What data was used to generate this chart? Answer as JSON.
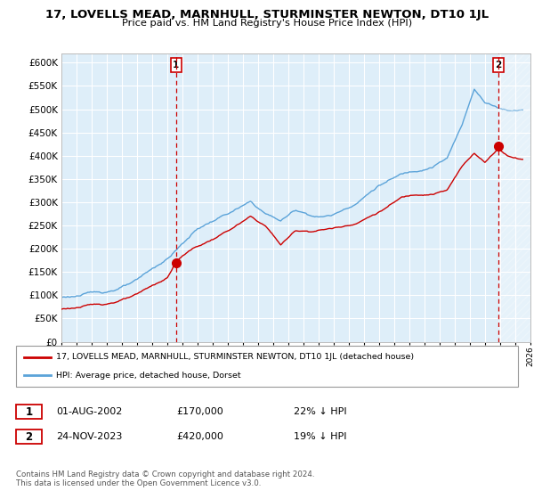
{
  "title": "17, LOVELLS MEAD, MARNHULL, STURMINSTER NEWTON, DT10 1JL",
  "subtitle": "Price paid vs. HM Land Registry's House Price Index (HPI)",
  "legend_line1": "17, LOVELLS MEAD, MARNHULL, STURMINSTER NEWTON, DT10 1JL (detached house)",
  "legend_line2": "HPI: Average price, detached house, Dorset",
  "transaction1_label": "1",
  "transaction1_date": "01-AUG-2002",
  "transaction1_price": "£170,000",
  "transaction1_hpi": "22% ↓ HPI",
  "transaction2_label": "2",
  "transaction2_date": "24-NOV-2023",
  "transaction2_price": "£420,000",
  "transaction2_hpi": "19% ↓ HPI",
  "footer": "Contains HM Land Registry data © Crown copyright and database right 2024.\nThis data is licensed under the Open Government Licence v3.0.",
  "hpi_color": "#5ba3d9",
  "price_color": "#cc0000",
  "bg_color": "#deeef9",
  "t1_x": 2002.58,
  "t2_x": 2023.9,
  "marker1_price": 170000,
  "marker2_price": 420000,
  "ylim": [
    0,
    620000
  ],
  "xlim": [
    1995.0,
    2026.0
  ],
  "yticks": [
    0,
    50000,
    100000,
    150000,
    200000,
    250000,
    300000,
    350000,
    400000,
    450000,
    500000,
    550000,
    600000
  ]
}
